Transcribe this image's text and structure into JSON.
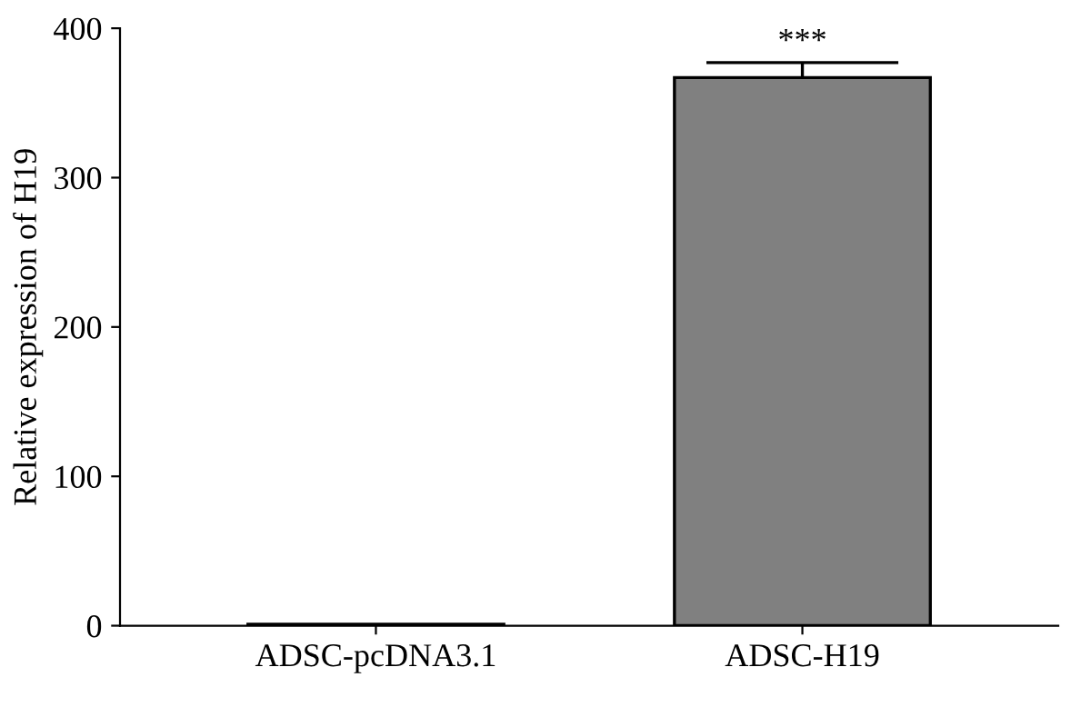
{
  "chart_data": {
    "type": "bar",
    "ylabel": "Relative expression of H19",
    "categories": [
      "ADSC-pcDNA3.1",
      "ADSC-H19"
    ],
    "values": [
      1,
      367
    ],
    "errors": [
      null,
      10
    ],
    "colors": [
      "#808080",
      "#808080"
    ],
    "ylim": [
      0,
      400
    ],
    "yticks": [
      0,
      100,
      200,
      300,
      400
    ],
    "annotations": [
      "***"
    ],
    "grid": false
  }
}
